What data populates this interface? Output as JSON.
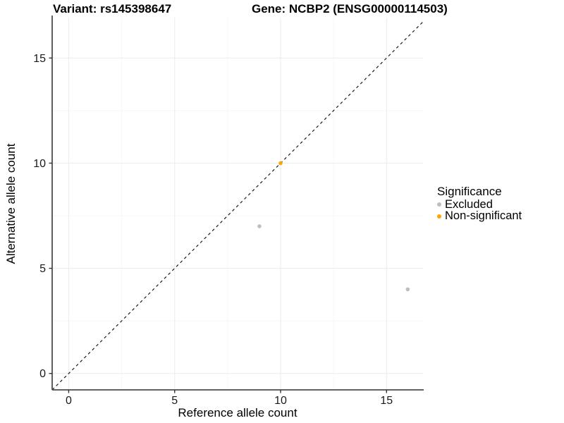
{
  "title": {
    "left": "Variant: rs145398647",
    "right": "Gene: NCBP2 (ENSG00000114503)"
  },
  "axes": {
    "x": {
      "label": "Reference allele count",
      "ticks": [
        0,
        5,
        10,
        15
      ],
      "minor_ticks": [
        2.5,
        7.5,
        12.5
      ]
    },
    "y": {
      "label": "Alternative allele count",
      "ticks": [
        0,
        5,
        10,
        15
      ],
      "minor_ticks": [
        2.5,
        7.5,
        12.5
      ]
    }
  },
  "legend": {
    "title": "Significance",
    "items": [
      {
        "label": "Excluded",
        "color": "#BEBEBE"
      },
      {
        "label": "Non-significant",
        "color": "#FFA500"
      }
    ]
  },
  "colors": {
    "grid_major": "#EBEBEB",
    "grid_minor": "#F7F7F7",
    "axis_line": "#4d4d4d",
    "tick": "#333333",
    "tick_label": "#1a1a1a",
    "identity_line": "#1a1a1a"
  },
  "chart_data": {
    "type": "scatter",
    "title": "Variant: rs145398647    Gene: NCBP2 (ENSG00000114503)",
    "xlabel": "Reference allele count",
    "ylabel": "Alternative allele count",
    "xlim": [
      -0.78,
      16.72
    ],
    "ylim": [
      -0.78,
      16.92
    ],
    "x_ticks": [
      0,
      5,
      10,
      15
    ],
    "y_ticks": [
      0,
      5,
      10,
      15
    ],
    "x_minor_ticks": [
      2.5,
      7.5,
      12.5
    ],
    "y_minor_ticks": [
      2.5,
      7.5,
      12.5
    ],
    "grid": true,
    "legend_position": "right",
    "reference_line": {
      "type": "identity",
      "slope": 1,
      "intercept": 0,
      "style": "dashed",
      "color": "#1a1a1a"
    },
    "series": [
      {
        "name": "Excluded",
        "color": "#BEBEBE",
        "points": [
          [
            9,
            7
          ],
          [
            16,
            4
          ]
        ]
      },
      {
        "name": "Non-significant",
        "color": "#FFA500",
        "points": [
          [
            10,
            10
          ]
        ]
      }
    ]
  }
}
